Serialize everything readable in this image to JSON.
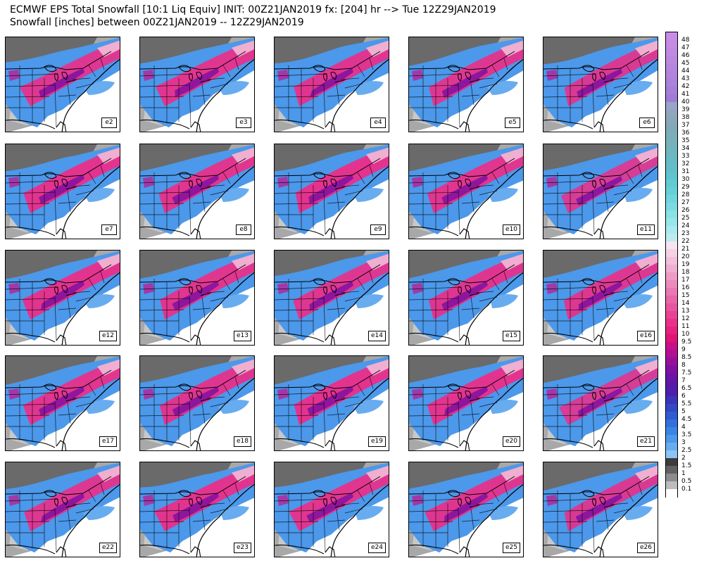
{
  "header": {
    "title_line1": "ECMWF EPS Total Snowfall [10:1 Liq Equiv] INIT: 00Z21JAN2019 fx: [204] hr --> Tue 12Z29JAN2019",
    "title_line2": "Snowfall [inches] between 00Z21JAN2019 -- 12Z29JAN2019"
  },
  "panels": [
    {
      "label": "e2",
      "snow_intensity": 0.7
    },
    {
      "label": "e3",
      "snow_intensity": 0.8
    },
    {
      "label": "e4",
      "snow_intensity": 0.75
    },
    {
      "label": "e5",
      "snow_intensity": 0.7
    },
    {
      "label": "e6",
      "snow_intensity": 0.6
    },
    {
      "label": "e7",
      "snow_intensity": 0.85
    },
    {
      "label": "e8",
      "snow_intensity": 0.8
    },
    {
      "label": "e9",
      "snow_intensity": 0.9
    },
    {
      "label": "e10",
      "snow_intensity": 0.8
    },
    {
      "label": "e11",
      "snow_intensity": 0.5
    },
    {
      "label": "e12",
      "snow_intensity": 0.85
    },
    {
      "label": "e13",
      "snow_intensity": 0.8
    },
    {
      "label": "e14",
      "snow_intensity": 0.7
    },
    {
      "label": "e15",
      "snow_intensity": 0.75
    },
    {
      "label": "e16",
      "snow_intensity": 0.7
    },
    {
      "label": "e17",
      "snow_intensity": 0.8
    },
    {
      "label": "e18",
      "snow_intensity": 0.75
    },
    {
      "label": "e19",
      "snow_intensity": 0.9
    },
    {
      "label": "e20",
      "snow_intensity": 0.85
    },
    {
      "label": "e21",
      "snow_intensity": 0.5
    },
    {
      "label": "e22",
      "snow_intensity": 0.7
    },
    {
      "label": "e23",
      "snow_intensity": 0.85
    },
    {
      "label": "e24",
      "snow_intensity": 0.8
    },
    {
      "label": "e25",
      "snow_intensity": 0.75
    },
    {
      "label": "e26",
      "snow_intensity": 0.6
    }
  ],
  "colorbar": {
    "levels": [
      {
        "label": "48",
        "color": "#c88ce6"
      },
      {
        "label": "47",
        "color": "#c58ae4"
      },
      {
        "label": "46",
        "color": "#c08ae2"
      },
      {
        "label": "45",
        "color": "#bb88e0"
      },
      {
        "label": "44",
        "color": "#b686de"
      },
      {
        "label": "43",
        "color": "#b084dc"
      },
      {
        "label": "42",
        "color": "#aa82da"
      },
      {
        "label": "41",
        "color": "#a47ed8"
      },
      {
        "label": "40",
        "color": "#9e7cd6"
      },
      {
        "label": "39",
        "color": "#98a4c8"
      },
      {
        "label": "38",
        "color": "#90a6be"
      },
      {
        "label": "37",
        "color": "#88a8b8"
      },
      {
        "label": "36",
        "color": "#80aab6"
      },
      {
        "label": "35",
        "color": "#7aaeb8"
      },
      {
        "label": "34",
        "color": "#74b2bc"
      },
      {
        "label": "33",
        "color": "#6eb6c0"
      },
      {
        "label": "32",
        "color": "#68bac4"
      },
      {
        "label": "31",
        "color": "#64bec8"
      },
      {
        "label": "30",
        "color": "#60c4ce"
      },
      {
        "label": "29",
        "color": "#62cad2"
      },
      {
        "label": "28",
        "color": "#66d0d6"
      },
      {
        "label": "27",
        "color": "#6ed6dc"
      },
      {
        "label": "26",
        "color": "#7adce0"
      },
      {
        "label": "25",
        "color": "#88e2e6"
      },
      {
        "label": "24",
        "color": "#98e6ea"
      },
      {
        "label": "23",
        "color": "#aaeaee"
      },
      {
        "label": "22",
        "color": "#bcecf0"
      },
      {
        "label": "21",
        "color": "#f6e4ee"
      },
      {
        "label": "20",
        "color": "#f4d2e4"
      },
      {
        "label": "19",
        "color": "#f2c0da"
      },
      {
        "label": "18",
        "color": "#f0aed0"
      },
      {
        "label": "17",
        "color": "#ee9cc6"
      },
      {
        "label": "16",
        "color": "#ec8abc"
      },
      {
        "label": "15",
        "color": "#ea78b2"
      },
      {
        "label": "14",
        "color": "#e866a8"
      },
      {
        "label": "13",
        "color": "#e8549e"
      },
      {
        "label": "12",
        "color": "#e84294"
      },
      {
        "label": "11",
        "color": "#e8308a"
      },
      {
        "label": "10",
        "color": "#e82080"
      },
      {
        "label": "9.5",
        "color": "#e01474"
      },
      {
        "label": "9",
        "color": "#c8108a"
      },
      {
        "label": "8.5",
        "color": "#b01094"
      },
      {
        "label": "8",
        "color": "#98109a"
      },
      {
        "label": "7.5",
        "color": "#8010a0"
      },
      {
        "label": "7",
        "color": "#6c14a4"
      },
      {
        "label": "6.5",
        "color": "#5a18a8"
      },
      {
        "label": "6",
        "color": "#4c20ac"
      },
      {
        "label": "5.5",
        "color": "#3c34b8"
      },
      {
        "label": "5",
        "color": "#3448c4"
      },
      {
        "label": "4.5",
        "color": "#305cd0"
      },
      {
        "label": "4",
        "color": "#3470dc"
      },
      {
        "label": "3.5",
        "color": "#3c84e4"
      },
      {
        "label": "3",
        "color": "#4c98ea"
      },
      {
        "label": "2.5",
        "color": "#68acf0"
      },
      {
        "label": "2",
        "color": "#8cc4f6"
      },
      {
        "label": "1.5",
        "color": "#3c3c3c"
      },
      {
        "label": "1",
        "color": "#626262"
      },
      {
        "label": "0.5",
        "color": "#8c8c8c"
      },
      {
        "label": "0.1",
        "color": "#bcbcbc"
      },
      {
        "label": "",
        "color": "#ffffff"
      }
    ]
  }
}
